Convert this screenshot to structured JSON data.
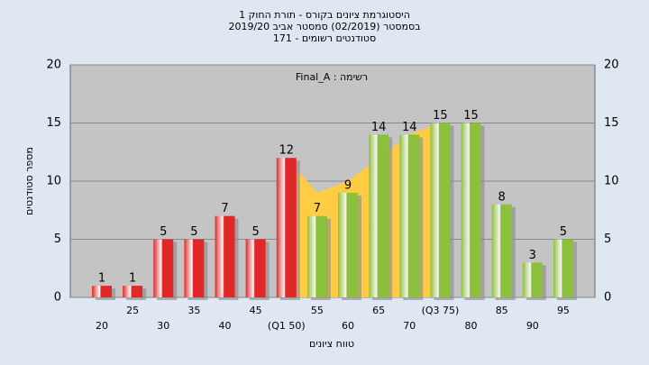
{
  "chart_data": {
    "type": "bar",
    "title": [
      "היסטוגרמת ציונים בקורס - תורת החוק 1",
      "בסמסטר (02/2019) סמסטר אביב 2019/20",
      "סטודנטים רשומים - 171"
    ],
    "annotation": "Final_A : רשימה",
    "x_label": "טווח ציונים",
    "y_label": "מספר סטודנטים",
    "categories": [
      "20",
      "25",
      "30",
      "35",
      "40",
      "45",
      "(Q1 50)",
      "55",
      "60",
      "65",
      "70",
      "(Q3 75)",
      "80",
      "85",
      "90",
      "95"
    ],
    "values": [
      1,
      1,
      5,
      5,
      7,
      5,
      12,
      7,
      9,
      14,
      14,
      15,
      15,
      8,
      3,
      5
    ],
    "colors": [
      "#e02828",
      "#e02828",
      "#e02828",
      "#e02828",
      "#e02828",
      "#e02828",
      "#e02828",
      "#8cbf3c",
      "#8cbf3c",
      "#8cbf3c",
      "#8cbf3c",
      "#8cbf3c",
      "#8cbf3c",
      "#8cbf3c",
      "#8cbf3c",
      "#8cbf3c"
    ],
    "area": {
      "color": "#ffcc44",
      "values": [
        null,
        null,
        null,
        null,
        null,
        null,
        12,
        9,
        10,
        12,
        14,
        15,
        null,
        null,
        null,
        null
      ]
    },
    "ylim": [
      0,
      20
    ],
    "yticks": [
      0,
      5,
      10,
      15,
      20
    ],
    "grid": true
  }
}
